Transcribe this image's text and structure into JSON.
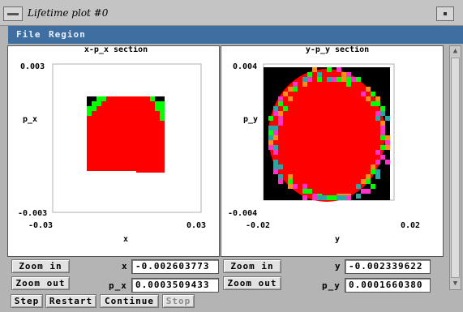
{
  "window": {
    "title": "Lifetime plot #0"
  },
  "menu": {
    "items": [
      "File",
      "Region"
    ]
  },
  "left_plot": {
    "title": "x-p_x section",
    "xlabel": "x",
    "ylabel": "p_x",
    "xticks": [
      "-0.03",
      "0.03"
    ],
    "yticks": [
      "0.003",
      "-0.003"
    ],
    "zoom_in_label": "Zoom in",
    "zoom_out_label": "Zoom out",
    "coord_x_label": "x",
    "coord_x_value": "-0.002603773",
    "coord_p_label": "p_x",
    "coord_p_value": "0.0003509433"
  },
  "right_plot": {
    "title": "y-p_y section",
    "xlabel": "y",
    "ylabel": "p_y",
    "xticks": [
      "-0.02",
      "0.02"
    ],
    "yticks": [
      "0.004",
      "-0.004"
    ],
    "zoom_in_label": "Zoom in",
    "zoom_out_label": "Zoom out",
    "coord_y_label": "y",
    "coord_y_value": "-0.002339622",
    "coord_p_label": "p_y",
    "coord_p_value": "0.0001660380"
  },
  "bottom": {
    "step_label": "Step",
    "restart_label": "Restart",
    "continue_label": "Continue",
    "stop_label": "Stop"
  },
  "colors": {
    "menu_bg": "#3f6fa0",
    "core": "#ff0000",
    "edge_green": "#00ff00",
    "edge_magenta": "#ff33cc",
    "edge_orange": "#ff8c1a",
    "edge_teal": "#2aa6a6",
    "lost": "#000000"
  }
}
